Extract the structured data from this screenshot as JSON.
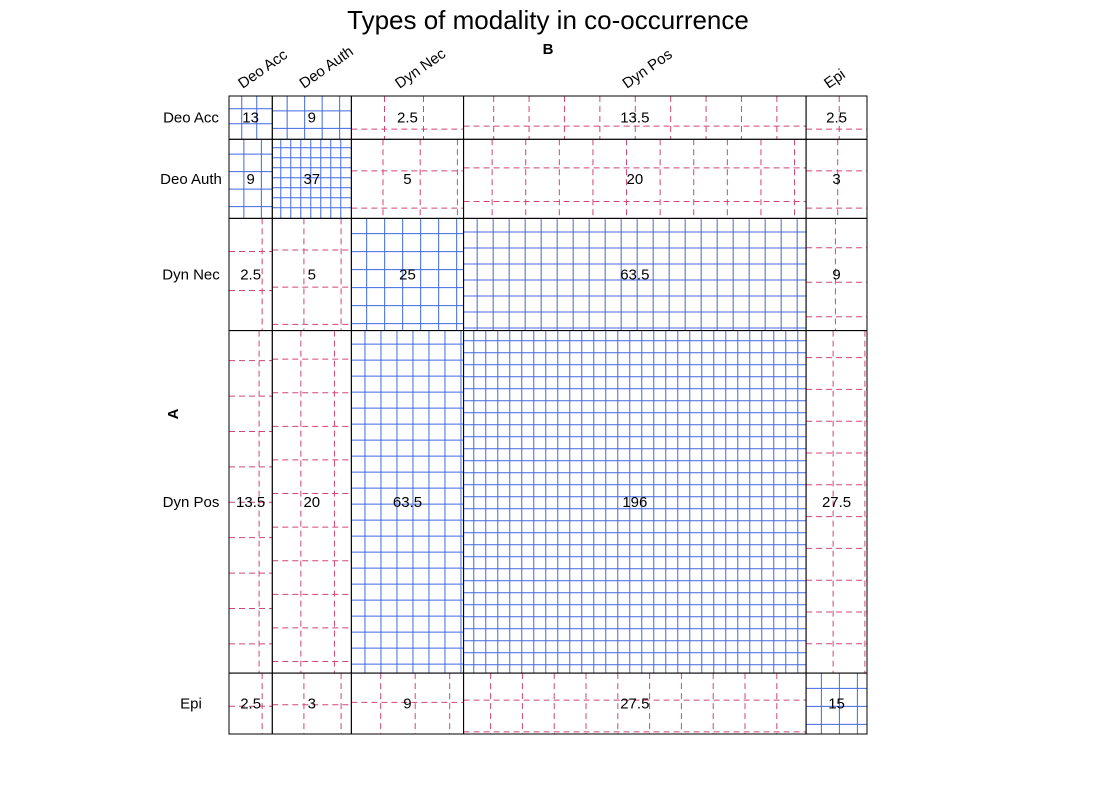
{
  "chart_data": {
    "type": "mosaic",
    "title": "Types of modality in co-occurrence",
    "row_axis_label": "A",
    "col_axis_label": "B",
    "rows": [
      "Deo Acc",
      "Deo Auth",
      "Dyn Nec",
      "Dyn Pos",
      "Epi"
    ],
    "cols": [
      "Deo Acc",
      "Deo Auth",
      "Dyn Nec",
      "Dyn Pos",
      "Epi"
    ],
    "values": [
      [
        13,
        9,
        2.5,
        13.5,
        2.5
      ],
      [
        9,
        37,
        5,
        20,
        3
      ],
      [
        2.5,
        5,
        25,
        63.5,
        9
      ],
      [
        13.5,
        20,
        63.5,
        196,
        27.5
      ],
      [
        2.5,
        3,
        9,
        27.5,
        15
      ]
    ],
    "cell_labels": [
      [
        "13",
        "9",
        "2.5",
        "13.5",
        "2.5"
      ],
      [
        "9",
        "37",
        "5",
        "20",
        "3"
      ],
      [
        "2.5",
        "5",
        "25",
        "63.5",
        "9"
      ],
      [
        "13.5",
        "20",
        "63.5",
        "196",
        "27.5"
      ],
      [
        "2.5",
        "3",
        "9",
        "27.5",
        "15"
      ]
    ],
    "shading": {
      "positive_color": "#4169e1",
      "negative_color": "#d0457a",
      "positive_style": "solid",
      "negative_style": "dashed",
      "residual_sign": [
        [
          1,
          1,
          -1,
          -1,
          -1
        ],
        [
          1,
          1,
          -1,
          -1,
          -1
        ],
        [
          -1,
          -1,
          1,
          1,
          -1
        ],
        [
          -1,
          -1,
          1,
          1,
          -1
        ],
        [
          -1,
          -1,
          -1,
          -1,
          1
        ]
      ],
      "residual_magnitude": [
        [
          2.6,
          2.1,
          1.0,
          1.4,
          1.0
        ],
        [
          2.1,
          3.6,
          1.2,
          1.6,
          1.2
        ],
        [
          1.0,
          1.2,
          2.0,
          2.4,
          1.5
        ],
        [
          1.4,
          1.6,
          2.4,
          3.2,
          1.8
        ],
        [
          1.0,
          1.2,
          1.5,
          1.8,
          2.0
        ]
      ]
    },
    "grid": true,
    "legend": "none"
  }
}
